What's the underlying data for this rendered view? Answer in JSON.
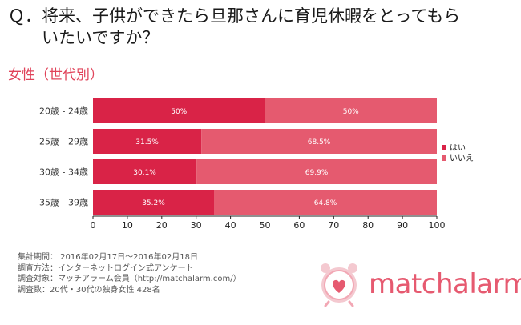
{
  "header": {
    "question_line1": "Ｑ．将来、子供ができたら旦那さんに育児休暇をとってもら",
    "question_line2": "いたいですか？",
    "subtitle": "女性（世代別）"
  },
  "chart_data": {
    "type": "bar",
    "orientation": "horizontal",
    "stacked": true,
    "categories": [
      "20歳 - 24歳",
      "25歳 - 29歳",
      "30歳 - 34歳",
      "35歳 - 39歳"
    ],
    "series": [
      {
        "name": "はい",
        "values": [
          50,
          31.5,
          30.1,
          35.2
        ],
        "labels": [
          "50%",
          "31.5%",
          "30.1%",
          "35.2%"
        ],
        "color": "#d92347"
      },
      {
        "name": "いいえ",
        "values": [
          50,
          68.5,
          69.9,
          64.8
        ],
        "labels": [
          "50%",
          "68.5%",
          "69.9%",
          "64.8%"
        ],
        "color": "#e55a6f"
      }
    ],
    "xlim": [
      0,
      100
    ],
    "xticks": [
      "0",
      "10",
      "20",
      "30",
      "40",
      "50",
      "60",
      "70",
      "80",
      "90",
      "100"
    ],
    "grid": false,
    "legend_position": "right"
  },
  "footer": {
    "line1": "集計期間： 2016年02月17日～2016年02月18日",
    "line2": "調査方法：インターネットログイン式アンケート",
    "line3": "調査対象：マッチアラーム会員（http://matchalarm.com/）",
    "line4": "調査数：20代・30代の独身女性 428名"
  },
  "logo": {
    "text": "matchalarm",
    "color": "#e65a70"
  }
}
